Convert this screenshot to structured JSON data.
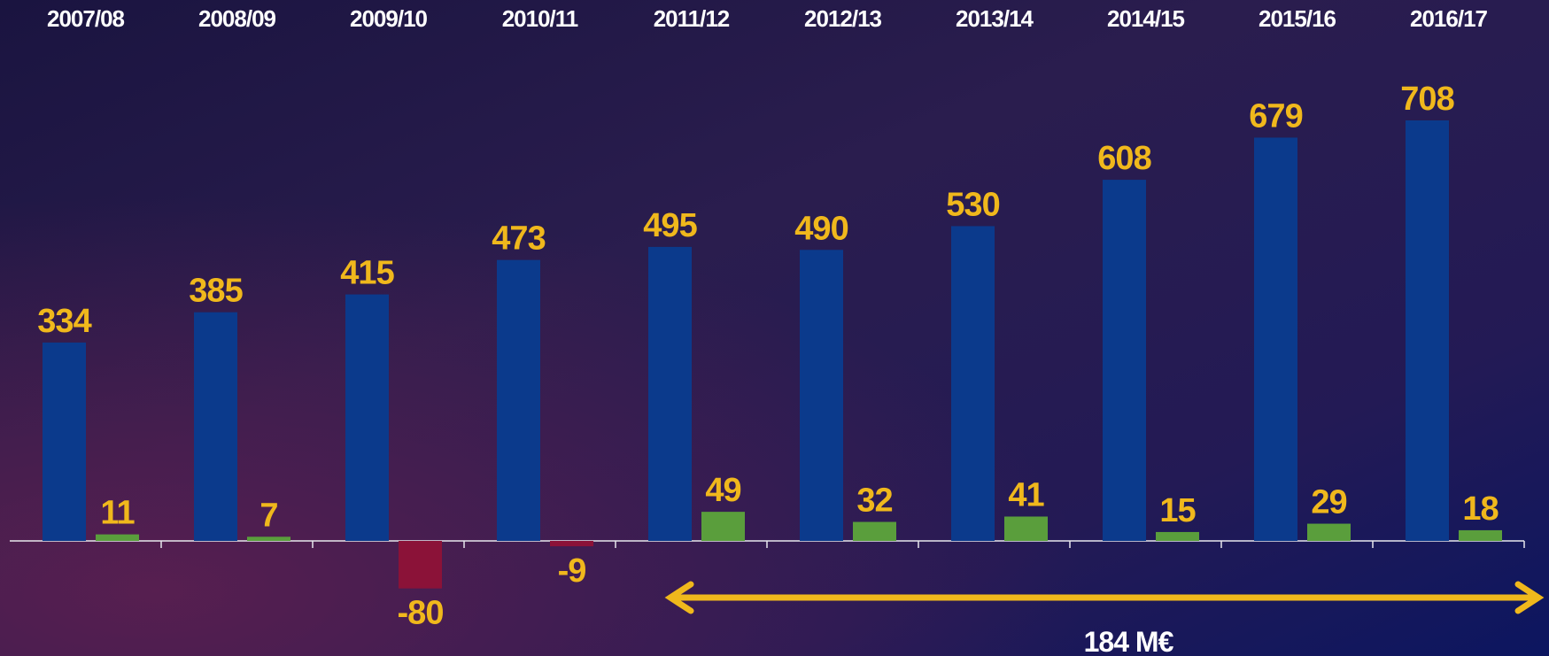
{
  "chart_data": {
    "type": "bar",
    "categories": [
      "2007/08",
      "2008/09",
      "2009/10",
      "2010/11",
      "2011/12",
      "2012/13",
      "2013/14",
      "2014/15",
      "2015/16",
      "2016/17"
    ],
    "series": [
      {
        "color": "#0b3a8c",
        "values": [
          334,
          385,
          415,
          473,
          495,
          490,
          530,
          608,
          679,
          708
        ]
      },
      {
        "color": "#5a9e3c",
        "negative_color": "#8b1238",
        "values": [
          11,
          7,
          -80,
          -9,
          49,
          32,
          41,
          15,
          29,
          18
        ]
      }
    ],
    "label_color": "#f0b81c",
    "annotation": "184 M€"
  }
}
